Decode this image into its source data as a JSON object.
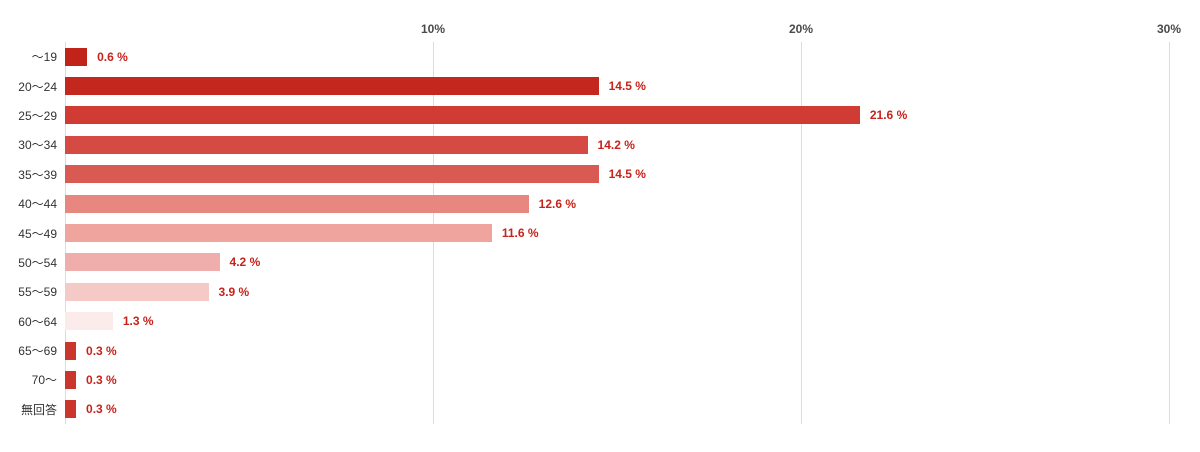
{
  "chart_data": {
    "type": "bar",
    "orientation": "horizontal",
    "title": "",
    "xlabel": "",
    "ylabel": "",
    "categories": [
      "～19",
      "20～24",
      "25～29",
      "30～34",
      "35～39",
      "40～44",
      "45～49",
      "50～54",
      "55～59",
      "60～64",
      "65～69",
      "70～",
      "無回答"
    ],
    "values": [
      0.6,
      14.5,
      21.6,
      14.2,
      14.5,
      12.6,
      11.6,
      4.2,
      3.9,
      1.3,
      0.3,
      0.3,
      0.3
    ],
    "value_labels": [
      "0.6 %",
      "14.5 %",
      "21.6 %",
      "14.2 %",
      "14.5 %",
      "12.6 %",
      "11.6 %",
      "4.2 %",
      "3.9 %",
      "1.3 %",
      "0.3 %",
      "0.3 %",
      "0.3 %"
    ],
    "bar_colors": [
      "#c22318",
      "#c4271e",
      "#d03c33",
      "#d54a43",
      "#d95953",
      "#e78780",
      "#f0a49e",
      "#efaeab",
      "#f4c9c6",
      "#fcebeb",
      "#ca352c",
      "#ca352c",
      "#ca352c"
    ],
    "xlim": [
      0,
      30
    ],
    "x_ticks": [
      "10%",
      "20%",
      "30%"
    ],
    "x_tick_values": [
      10,
      20,
      30
    ],
    "grid_values": [
      0,
      10,
      20,
      30
    ],
    "grid": true,
    "legend": "none",
    "colors": {
      "value_label": "#c7231a",
      "category_label": "#333333",
      "tick_label": "#4a4a4a",
      "gridline": "#dcdcdc",
      "background": "#ffffff"
    }
  }
}
